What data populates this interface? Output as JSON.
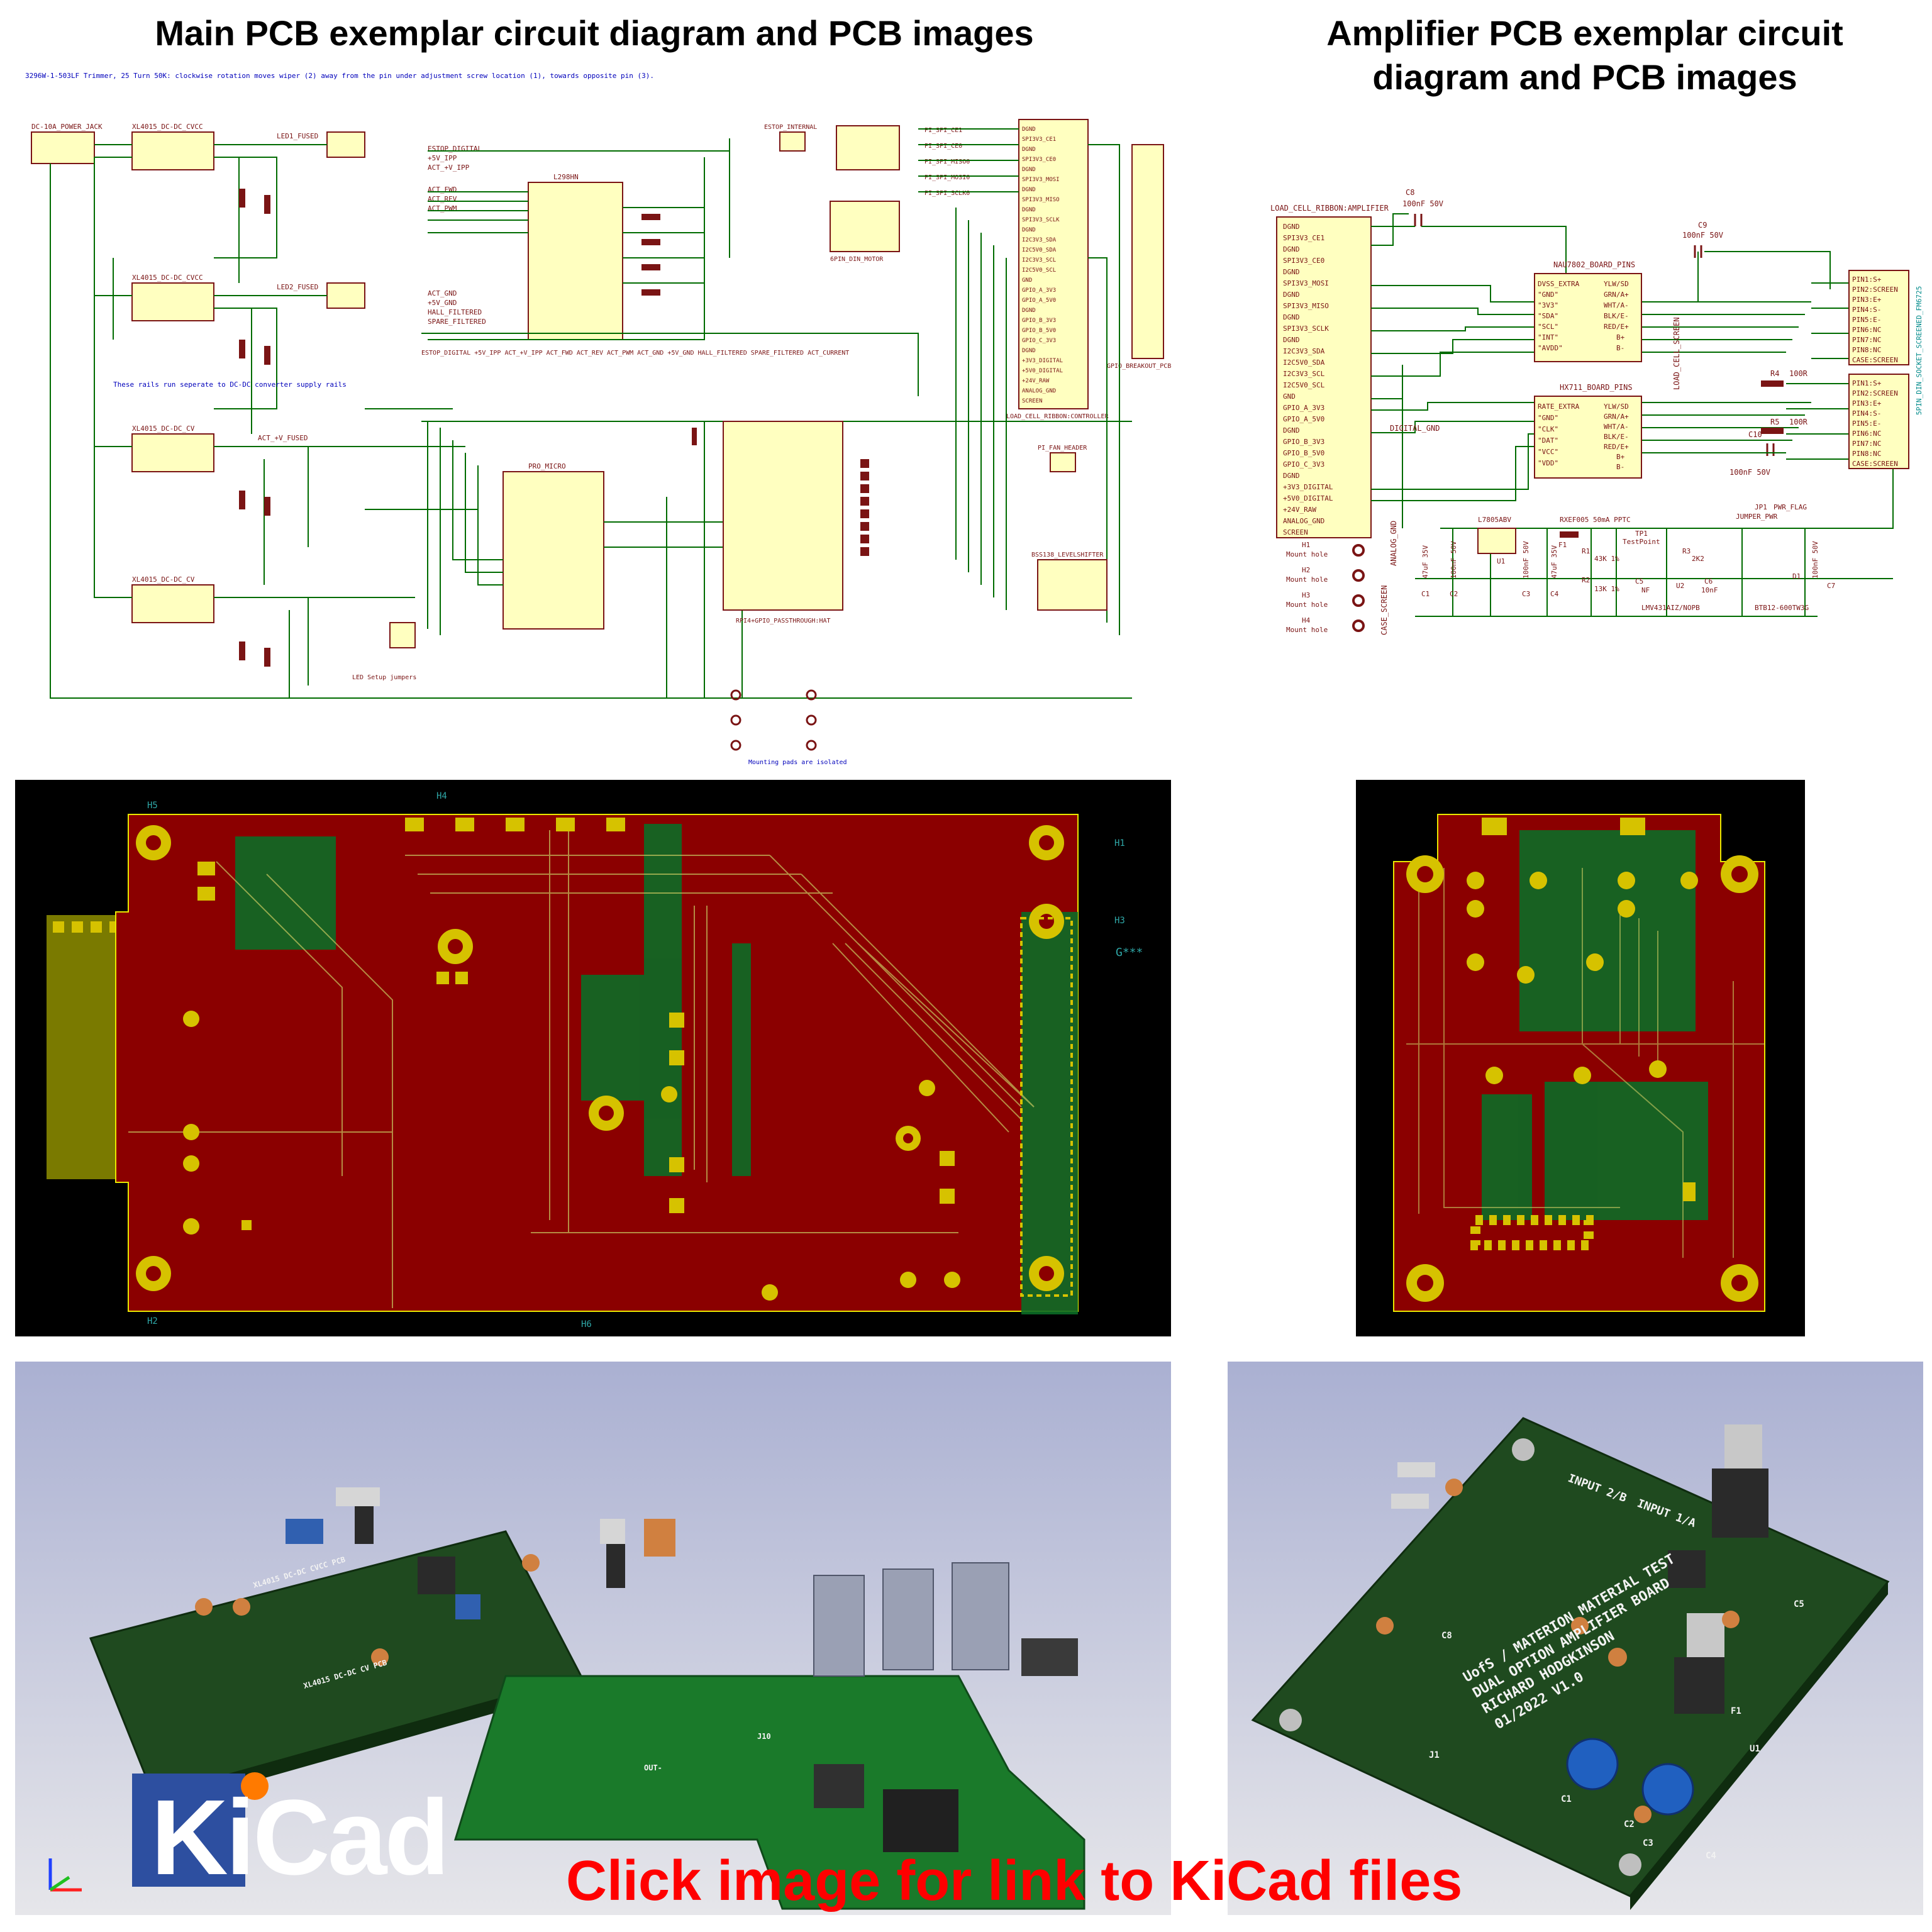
{
  "titles": {
    "main": "Main PCB exemplar circuit diagram and PCB images",
    "amp_line1": "Amplifier PCB exemplar circuit",
    "amp_line2": "diagram and PCB images"
  },
  "main_schematic": {
    "note": "3296W-1-503LF Trimmer, 25 Turn 50K: clockwise rotation moves wiper (2) away from the pin under adjustment screw location (1), towards opposite pin (3).",
    "connector_j1": "DC-10A_POWER_JACK",
    "regulators": [
      "XL4015_DC-DC_CVCC",
      "XL4015_DC-DC_CVCC",
      "XL4015_DC-DC_CV",
      "XL4015_DC-DC_CV"
    ],
    "ic_l298": "L298HN",
    "ic_pro_micro": "PRO_MICRO",
    "connector_estop": "ESTOP_INTERNAL",
    "connector_hall": "6PIN_DIN_MOTOR",
    "connector_ribbon": "LOAD_CELL_RIBBON:CONTROLLER",
    "connector_gpio": "GPIO_BREAKOUT_PCB",
    "rpi_hat": "RPI4+GPIO_PASSTHROUGH:HAT",
    "levelshifter": "BSS138_LEVELSHIFTER",
    "fan": "PI_FAN_HEADER",
    "note_rails": "These rails run seperate to DC-DC converter supply rails",
    "note_jumpers": "LED Setup jumpers",
    "note_mount": "Mounting pads are isolated",
    "bus_label": "ESTOP_DIGITAL +5V_IPP ACT_+V_IPP ACT_FWD ACT_REV ACT_PWM ACT_GND +5V_GND HALL_FILTERED SPARE_FILTERED ACT_CURRENT",
    "spi_nets": [
      "PI_SPI_CE1",
      "PI_SPI_CE0",
      "PI_SPI_MISO0",
      "PI_SPI_MOSI0",
      "PI_SPI_SCLK0"
    ],
    "led_labels": [
      "LED1_FUSED",
      "LED2_FUSED",
      "ACT_+V_FUSED"
    ],
    "nets_left": [
      "ESTOP_DIGITAL",
      "+5V_IPP",
      "ACT_+V_IPP",
      "ACT_FWD",
      "ACT_REV",
      "ACT_PWM",
      "ACT_GND",
      "+5V_GND",
      "HALL_FILTERED",
      "SPARE_FILTERED"
    ],
    "ribbon_pins": [
      "DGND",
      "SPI3V3_CE1",
      "DGND",
      "SPI3V3_CE0",
      "DGND",
      "SPI3V3_MOSI",
      "DGND",
      "SPI3V3_MISO",
      "DGND",
      "SPI3V3_SCLK",
      "DGND",
      "I2C3V3_SDA",
      "I2C5V0_SDA",
      "I2C3V3_SCL",
      "I2C5V0_SCL",
      "GND",
      "GPIO_A_3V3",
      "GPIO_A_5V0",
      "DGND",
      "GPIO_B_3V3",
      "GPIO_B_5V0",
      "GPIO_C_3V3",
      "DGND",
      "+3V3_DIGITAL",
      "+5V0_DIGITAL",
      "+24V_RAW",
      "ANALOG_GND",
      "SCREEN"
    ]
  },
  "amp_schematic": {
    "j1": "LOAD_CELL_RIBBON:AMPLIFIER",
    "j1_pins": [
      "DGND",
      "SPI3V3_CE1",
      "DGND",
      "SPI3V3_CE0",
      "DGND",
      "SPI3V3_MOSI",
      "DGND",
      "SPI3V3_MISO",
      "DGND",
      "SPI3V3_SCLK",
      "DGND",
      "I2C3V3_SDA",
      "I2C5V0_SDA",
      "I2C3V3_SCL",
      "I2C5V0_SCL",
      "GND",
      "GPIO_A_3V3",
      "GPIO_A_5V0",
      "DGND",
      "GPIO_B_3V3",
      "GPIO_B_5V0",
      "GPIO_C_3V3",
      "DGND",
      "+3V3_DIGITAL",
      "+5V0_DIGITAL",
      "+24V_RAW",
      "ANALOG_GND",
      "SCREEN"
    ],
    "u3": "NAU7802_BOARD_PINS",
    "u3_left": [
      "DVSS_EXTRA",
      "\"GND\"",
      "\"3V3\"",
      "\"SDA\"",
      "\"SCL\"",
      "\"INT\"",
      "\"AVDD\""
    ],
    "u3_right": [
      "YLW/SD",
      "GRN/A+",
      "WHT/A-",
      "BLK/E-",
      "RED/E+",
      "B+",
      "B-"
    ],
    "u4": "HX711_BOARD_PINS",
    "u4_left": [
      "RATE_EXTRA",
      "\"GND\"",
      "\"CLK\"",
      "\"DAT\"",
      "\"VCC\"",
      "\"VDD\""
    ],
    "u4_right": [
      "YLW/SD",
      "GRN/A+",
      "WHT/A-",
      "BLK/E-",
      "RED/E+",
      "B+",
      "B-"
    ],
    "j2_pins": [
      "PIN1:S+",
      "PIN2:SCREEN",
      "PIN3:E+",
      "PIN4:S-",
      "PIN5:E-",
      "PIN6:NC",
      "PIN7:NC",
      "PIN8:NC",
      "CASE:SCREEN"
    ],
    "j3_pins": [
      "PIN1:S+",
      "PIN2:SCREEN",
      "PIN3:E+",
      "PIN4:S-",
      "PIN5:E-",
      "PIN6:NC",
      "PIN7:NC",
      "PIN8:NC",
      "CASE:SCREEN"
    ],
    "j2_label": "5PIN_DIN_SOCKET_SCREENED_FM6725",
    "caps": [
      "C8",
      "100nF 50V",
      "C9",
      "100nF 50V",
      "C10",
      "100nF 50V"
    ],
    "res": [
      "R4",
      "100R",
      "R5",
      "100R"
    ],
    "net_digital": "DIGITAL_GND",
    "net_screen": "LOAD_CELL_SCREEN",
    "net_analog": "ANALOG_GND",
    "net_case": "CASE_SCREEN",
    "reg": "L7805ABV",
    "fuse": "RXEF005 50mA PPTC",
    "jumper": "JUMPER_PWR",
    "flag": "PWR_FLAG",
    "testpoint": "TestPoint",
    "u2": "LMV431AIZ/NOPB",
    "d1": "BTB12-600TW3G",
    "mount_holes": [
      "Mount hole",
      "Mount hole",
      "Mount hole",
      "Mount hole"
    ],
    "hole_ids": [
      "H1",
      "H2",
      "H3",
      "H4"
    ],
    "lower_vals": [
      "47uF 35V",
      "100nF 50V",
      "100nF 50V",
      "47uF 35V",
      "43K 1%",
      "13K 1%",
      "NF",
      "2K2",
      "10nF",
      "100nF 50V"
    ],
    "lower_refs": [
      "C1",
      "C2",
      "C3",
      "C4",
      "R1",
      "R2",
      "C5",
      "R3",
      "C6",
      "U2",
      "D1",
      "C7",
      "TP1",
      "JP1",
      "U1",
      "F1"
    ]
  },
  "main_pcb": {
    "holes": [
      "H5",
      "H4",
      "H1",
      "H3",
      "H2",
      "H6"
    ],
    "marker": "G***"
  },
  "amp_render": {
    "silk_lines": [
      "UofS / MATERION MATERIAL TEST",
      "DUAL OPTION AMPLIFIER BOARD",
      "RICHARD HODGKINSON",
      "01/2022 V1.0"
    ],
    "inputs": [
      "INPUT 2/B",
      "INPUT 1/A"
    ],
    "refs": [
      "C1",
      "C2",
      "C3",
      "C4",
      "C5",
      "C8",
      "U1",
      "F1",
      "J1"
    ]
  },
  "main_render": {
    "silk": [
      "XL4015 DC-DC CV PCB",
      "XL4015 DC-DC CVCC PCB",
      "J10",
      "OUT-"
    ]
  },
  "logo": {
    "text": "KiCad"
  },
  "cta": "Click image for link to KiCad files",
  "colors": {
    "board_red": "#8b0000",
    "board_green": "#0b6b26",
    "pad_yellow": "#c8b400",
    "cta_red": "#ff0000",
    "kicad_blue": "#2d4fa0"
  }
}
